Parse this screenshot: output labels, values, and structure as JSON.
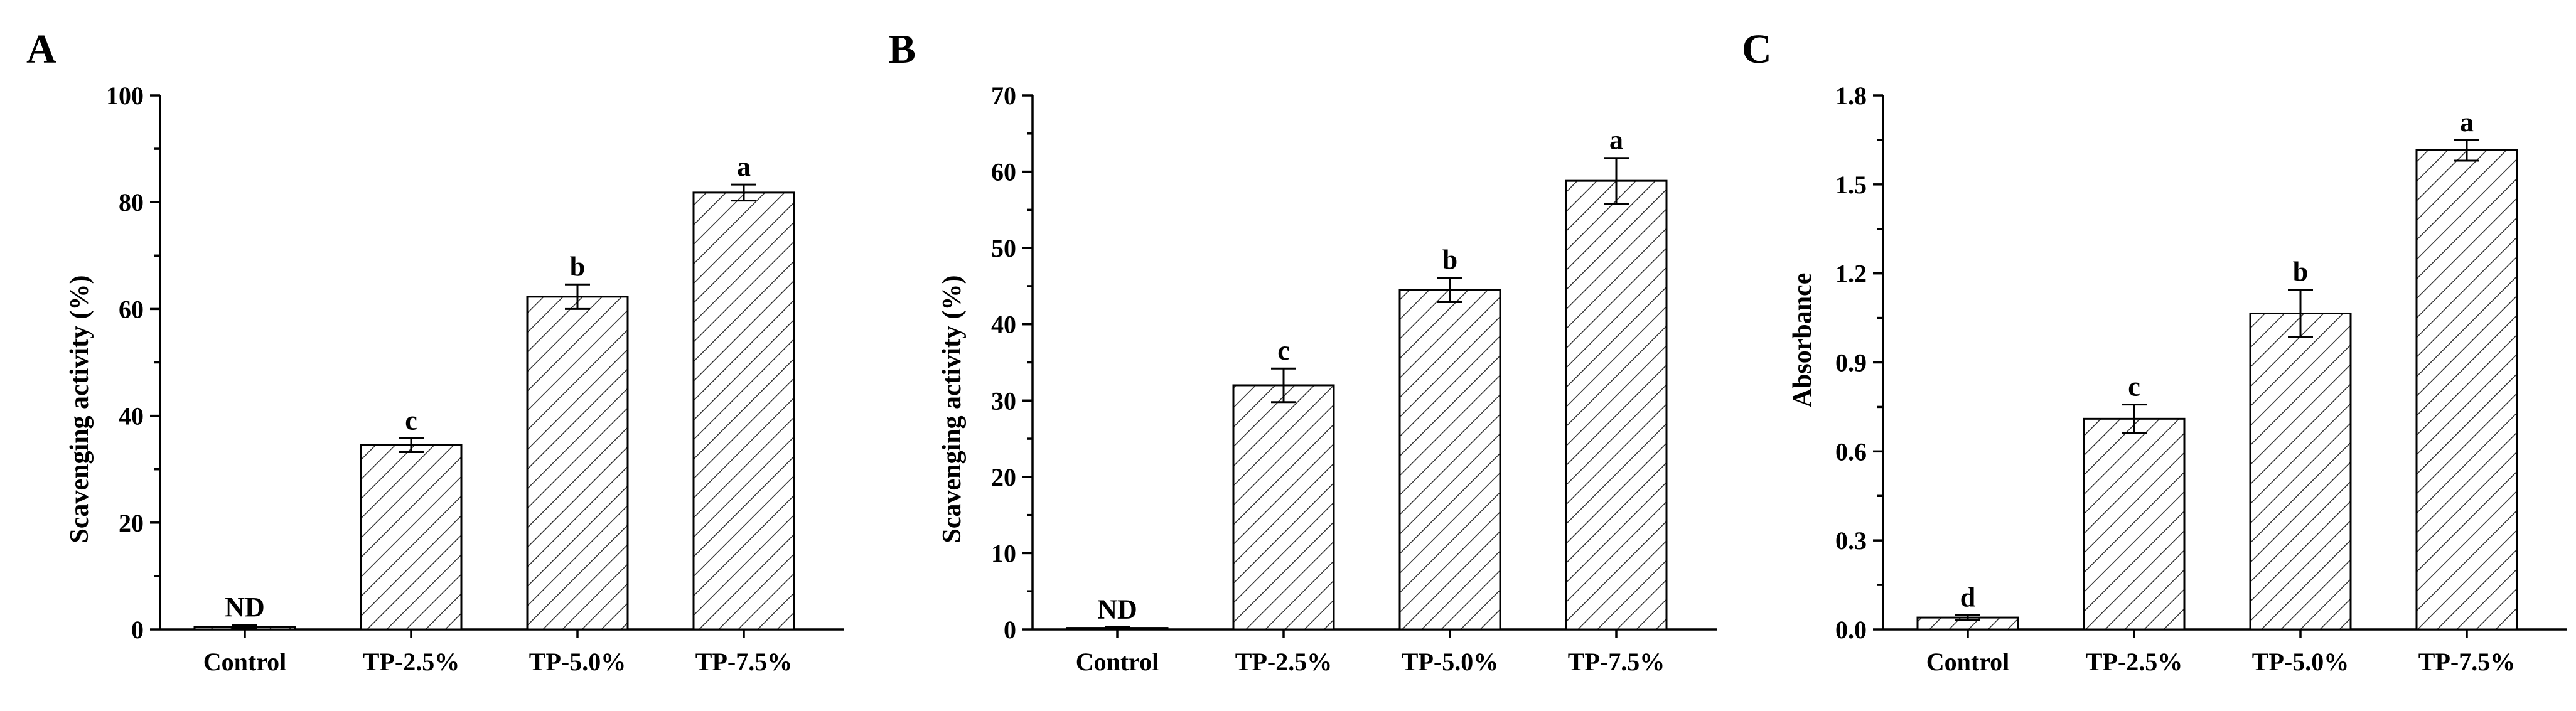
{
  "chart_data": [
    {
      "type": "bar",
      "panel_label": "A",
      "categories": [
        "Control",
        "TP-2.5%",
        "TP-5.0%",
        "TP-7.5%"
      ],
      "values": [
        0.5,
        34.5,
        62.3,
        81.8
      ],
      "errors": [
        0.3,
        1.3,
        2.3,
        1.5
      ],
      "significance": [
        "ND",
        "c",
        "b",
        "a"
      ],
      "xlabel": "",
      "ylabel": "Scavenging activity (%)",
      "ylim": [
        0,
        100
      ],
      "yticks": [
        0,
        20,
        40,
        60,
        80,
        100
      ],
      "ytick_labels": [
        "0",
        "20",
        "40",
        "60",
        "80",
        "100"
      ],
      "pattern": "diagonal-hatch",
      "grid": false,
      "legend": "none"
    },
    {
      "type": "bar",
      "panel_label": "B",
      "categories": [
        "Control",
        "TP-2.5%",
        "TP-5.0%",
        "TP-7.5%"
      ],
      "values": [
        0.2,
        32.0,
        44.5,
        58.8
      ],
      "errors": [
        0.1,
        2.2,
        1.6,
        3.0
      ],
      "significance": [
        "ND",
        "c",
        "b",
        "a"
      ],
      "xlabel": "",
      "ylabel": "Scavenging activity (%)",
      "ylim": [
        0,
        70
      ],
      "yticks": [
        0,
        10,
        20,
        30,
        40,
        50,
        60,
        70
      ],
      "ytick_labels": [
        "0",
        "10",
        "20",
        "30",
        "40",
        "50",
        "60",
        "70"
      ],
      "pattern": "diagonal-hatch",
      "grid": false,
      "legend": "none"
    },
    {
      "type": "bar",
      "panel_label": "C",
      "categories": [
        "Control",
        "TP-2.5%",
        "TP-5.0%",
        "TP-7.5%"
      ],
      "values": [
        0.04,
        0.71,
        1.065,
        1.615
      ],
      "errors": [
        0.008,
        0.048,
        0.08,
        0.035
      ],
      "significance": [
        "d",
        "c",
        "b",
        "a"
      ],
      "xlabel": "",
      "ylabel": "Absorbance",
      "ylim": [
        0,
        1.8
      ],
      "yticks": [
        0,
        0.3,
        0.6,
        0.9,
        1.2,
        1.5,
        1.8
      ],
      "ytick_labels": [
        "0.0",
        "0.3",
        "0.6",
        "0.9",
        "1.2",
        "1.5",
        "1.8"
      ],
      "pattern": "diagonal-hatch",
      "grid": false,
      "legend": "none"
    }
  ],
  "colors": {
    "bar_fill": "#ffffff",
    "hatch": "#333333",
    "stroke": "#000000"
  }
}
